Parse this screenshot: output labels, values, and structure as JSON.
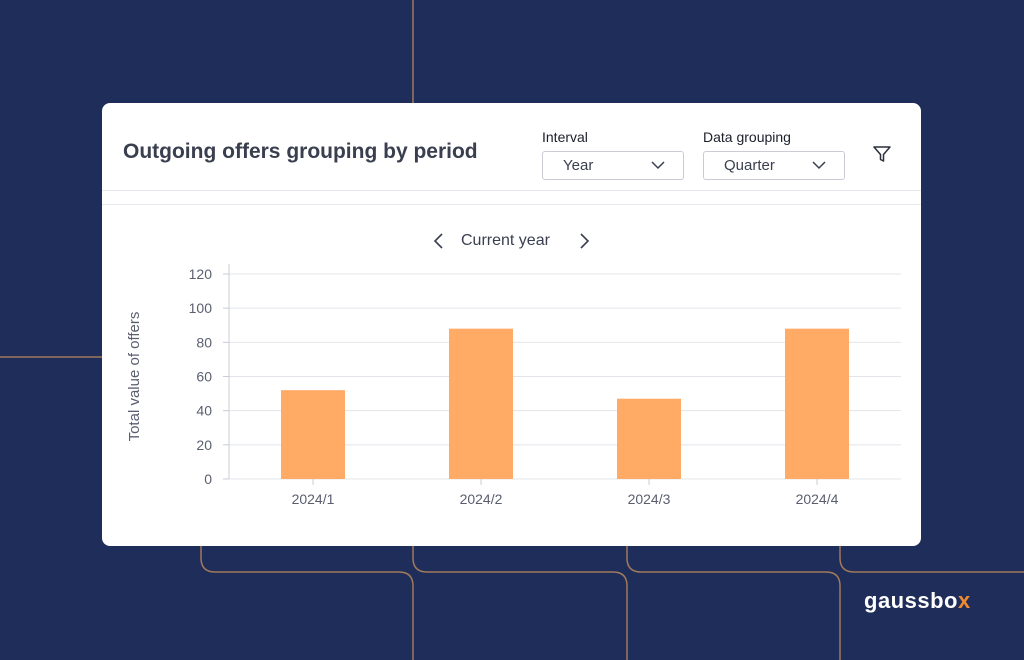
{
  "card": {
    "title": "Outgoing offers grouping by period",
    "interval": {
      "label": "Interval",
      "value": "Year"
    },
    "grouping": {
      "label": "Data grouping",
      "value": "Quarter"
    },
    "period_nav": {
      "label": "Current year"
    }
  },
  "logo": {
    "text_main": "gaussbo",
    "text_accent": "x"
  },
  "colors": {
    "background": "#1f2d5a",
    "bar": "#ffab66",
    "accent_line": "#a07a5a",
    "logo_accent": "#f08a2e"
  },
  "chart_data": {
    "type": "bar",
    "categories": [
      "2024/1",
      "2024/2",
      "2024/3",
      "2024/4"
    ],
    "values": [
      52,
      88,
      47,
      88
    ],
    "title": "",
    "xlabel": "",
    "ylabel": "Total value of offers",
    "ylim": [
      0,
      120
    ],
    "yticks": [
      0,
      20,
      40,
      60,
      80,
      100,
      120
    ],
    "grid": true
  }
}
